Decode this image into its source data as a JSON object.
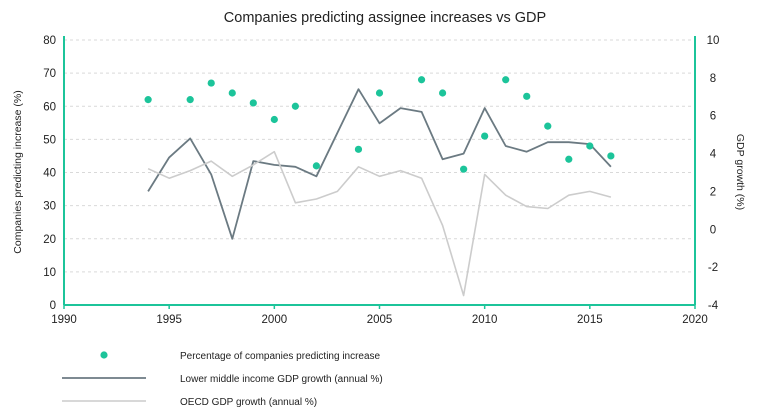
{
  "chart_data": {
    "type": "line",
    "title": "Companies predicting assignee increases vs GDP",
    "xlabel": "",
    "ylabel": "Companies predicting increase (%)",
    "y2label": "GDP growth (%)",
    "xlim": [
      1990,
      2020
    ],
    "ylim": [
      0,
      80
    ],
    "y2lim": [
      -4,
      10
    ],
    "x_ticks": [
      "1990",
      "1995",
      "2000",
      "2005",
      "2010",
      "2015",
      "2020"
    ],
    "y_ticks": [
      "0",
      "10",
      "20",
      "30",
      "40",
      "50",
      "60",
      "70",
      "80"
    ],
    "y2_ticks": [
      "-4",
      "-2",
      "0",
      "2",
      "4",
      "6",
      "8",
      "10"
    ],
    "grid": "horizontal dashed",
    "legend_position": "bottom",
    "colors": {
      "companies": "#1cc49a",
      "lower_middle": "#6b7a82",
      "oecd": "#cccccc",
      "axis": "#1cc49a",
      "grid": "#d9d9d9"
    },
    "series": [
      {
        "name": "Percentage of companies predicting increase",
        "kind": "scatter",
        "axis": "left",
        "x": [
          1994,
          1996,
          1997,
          1998,
          1999,
          2000,
          2001,
          2002,
          2004,
          2005,
          2007,
          2008,
          2009,
          2010,
          2011,
          2012,
          2013,
          2014,
          2015,
          2016
        ],
        "values": [
          62,
          62,
          67,
          64,
          61,
          56,
          60,
          42,
          47,
          64,
          68,
          64,
          41,
          51,
          68,
          63,
          54,
          44,
          48,
          45
        ]
      },
      {
        "name": "Lower middle income GDP growth (annual %)",
        "kind": "line",
        "axis": "right",
        "x": [
          1994,
          1995,
          1996,
          1997,
          1998,
          1999,
          2000,
          2001,
          2002,
          2003,
          2004,
          2005,
          2006,
          2007,
          2008,
          2009,
          2010,
          2011,
          2012,
          2013,
          2014,
          2015,
          2016
        ],
        "values": [
          2.0,
          3.8,
          4.8,
          2.9,
          -0.5,
          3.6,
          3.4,
          3.3,
          2.8,
          5.1,
          7.4,
          5.6,
          6.4,
          6.2,
          3.7,
          4.0,
          6.4,
          4.4,
          4.1,
          4.6,
          4.6,
          4.5,
          3.3
        ]
      },
      {
        "name": "OECD GDP growth (annual %)",
        "kind": "line",
        "axis": "right",
        "x": [
          1994,
          1995,
          1996,
          1997,
          1998,
          1999,
          2000,
          2001,
          2002,
          2003,
          2004,
          2005,
          2006,
          2007,
          2008,
          2009,
          2010,
          2011,
          2012,
          2013,
          2014,
          2015,
          2016
        ],
        "values": [
          3.2,
          2.7,
          3.1,
          3.6,
          2.8,
          3.4,
          4.1,
          1.4,
          1.6,
          2.0,
          3.3,
          2.8,
          3.1,
          2.7,
          0.2,
          -3.5,
          2.9,
          1.8,
          1.2,
          1.1,
          1.8,
          2.0,
          1.7
        ]
      }
    ]
  }
}
